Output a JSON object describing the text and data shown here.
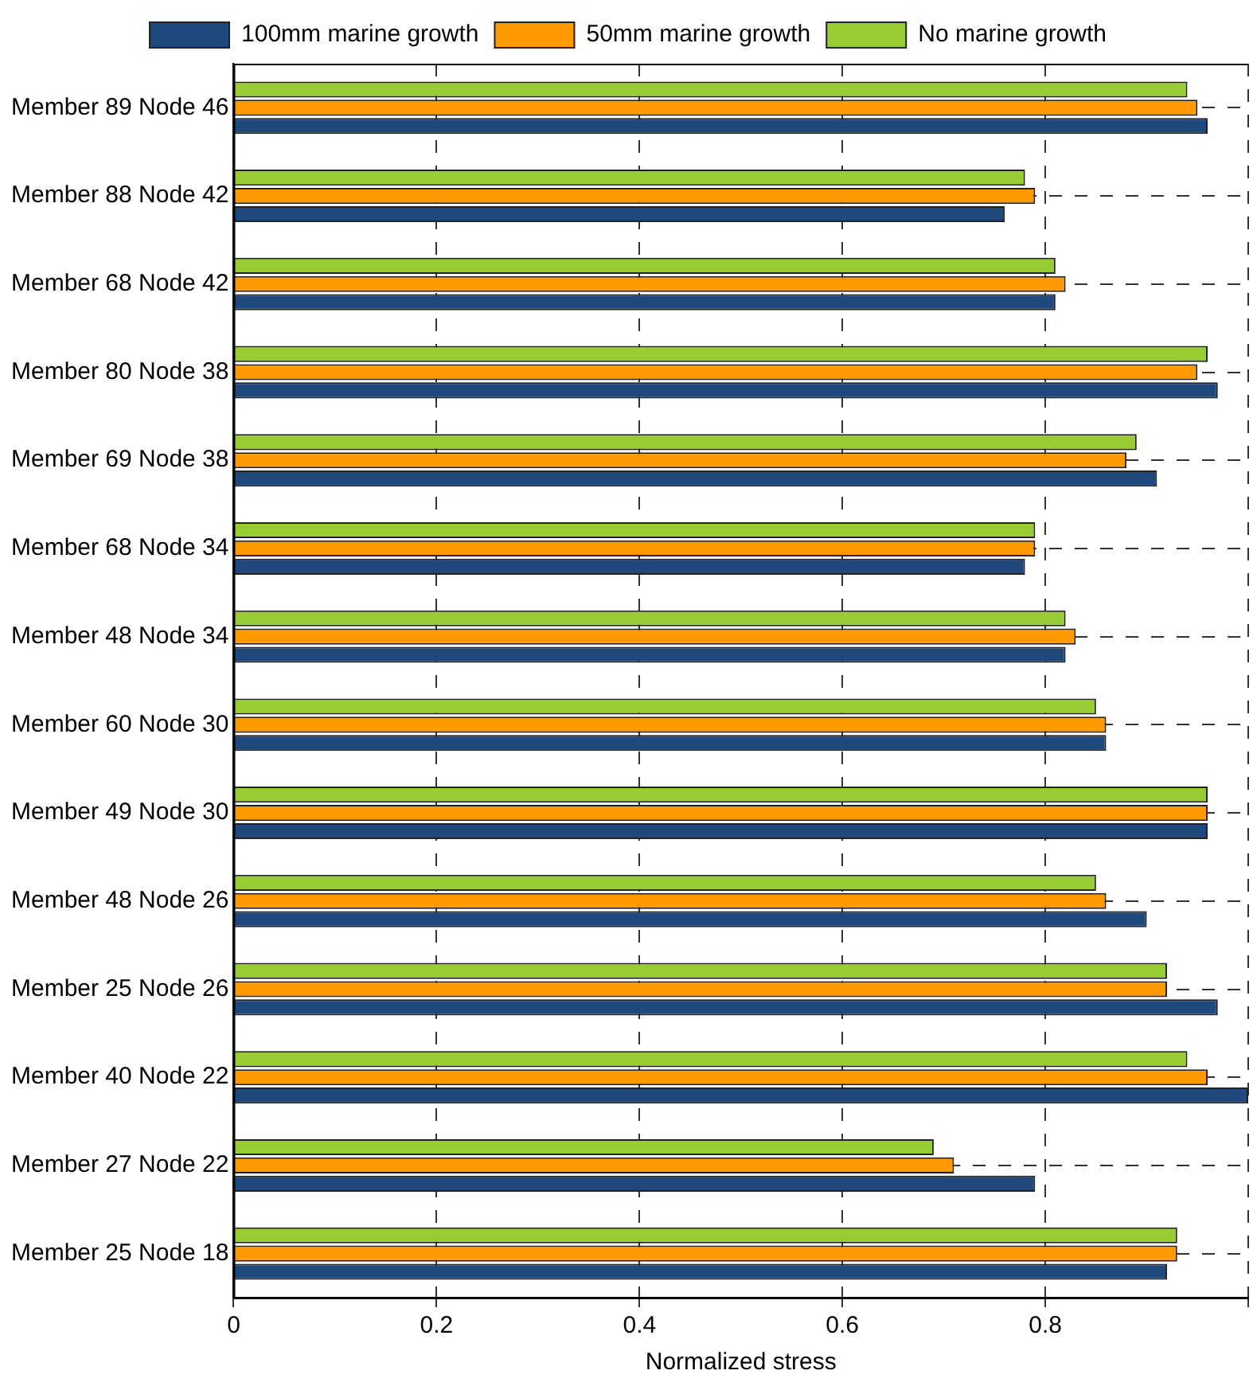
{
  "chart_data": {
    "type": "bar",
    "orientation": "horizontal",
    "xlabel": "Normalized stress",
    "categories": [
      "Member 89 Node 46",
      "Member 88 Node 42",
      "Member 68 Node 42",
      "Member 80 Node 38",
      "Member 69 Node 38",
      "Member 68 Node 34",
      "Member 48 Node 34",
      "Member 60 Node 30",
      "Member 49 Node 30",
      "Member 48 Node 26",
      "Member 25 Node 26",
      "Member 40 Node 22",
      "Member 27 Node 22",
      "Member 25 Node 18"
    ],
    "series": [
      {
        "name": "100mm marine growth",
        "color": "#1f497d",
        "values": [
          0.96,
          0.76,
          0.81,
          0.97,
          0.91,
          0.78,
          0.82,
          0.86,
          0.96,
          0.9,
          0.97,
          1.0,
          0.79,
          0.92
        ]
      },
      {
        "name": "50mm marine growth",
        "color": "#ff9900",
        "values": [
          0.95,
          0.79,
          0.82,
          0.95,
          0.88,
          0.79,
          0.83,
          0.86,
          0.96,
          0.86,
          0.92,
          0.96,
          0.71,
          0.93
        ]
      },
      {
        "name": "No marine growth",
        "color": "#99cc33",
        "values": [
          0.94,
          0.78,
          0.81,
          0.96,
          0.89,
          0.79,
          0.82,
          0.85,
          0.96,
          0.85,
          0.92,
          0.94,
          0.69,
          0.93
        ]
      }
    ],
    "xlim": [
      0,
      1
    ],
    "xticks": [
      0,
      0.2,
      0.4,
      0.6,
      0.8,
      {
        "value": 1,
        "label": null
      }
    ],
    "grid": true,
    "legend": "top"
  }
}
